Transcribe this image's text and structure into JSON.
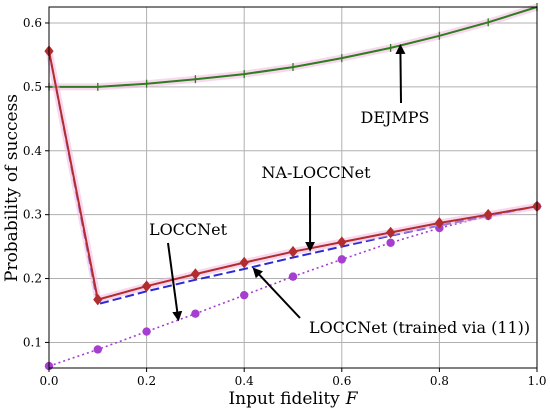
{
  "chart_data": {
    "type": "line",
    "xlabel": "Input fidelity",
    "xlabel_var": "F",
    "ylabel": "Probability of success",
    "xlim": [
      0.0,
      1.0
    ],
    "ylim": [
      0.06,
      0.625
    ],
    "grid": true,
    "xticks": [
      "0.0",
      "0.2",
      "0.4",
      "0.6",
      "0.8",
      "1.0"
    ],
    "yticks": [
      "0.1",
      "0.2",
      "0.3",
      "0.4",
      "0.5",
      "0.6"
    ],
    "series": [
      {
        "name": "DEJMPS",
        "style": "solid",
        "color": "#2e7d1f",
        "marker": "tick",
        "x": [
          0.0,
          0.1,
          0.2,
          0.3,
          0.4,
          0.5,
          0.6,
          0.7,
          0.8,
          0.9,
          1.0
        ],
        "y": [
          0.5,
          0.5,
          0.505,
          0.512,
          0.52,
          0.531,
          0.545,
          0.561,
          0.58,
          0.601,
          0.625
        ]
      },
      {
        "name": "NA-LOCCNet",
        "style": "solid",
        "color": "#b22d2d",
        "marker": "diamond",
        "x": [
          0.0,
          0.1,
          0.2,
          0.3,
          0.4,
          0.5,
          0.6,
          0.7,
          0.8,
          0.9,
          1.0
        ],
        "y": [
          0.556,
          0.167,
          0.188,
          0.207,
          0.225,
          0.242,
          0.257,
          0.272,
          0.287,
          0.3,
          0.313
        ]
      },
      {
        "name": "LOCCNet",
        "style": "dashed",
        "color": "#2b2bd6",
        "marker": "none",
        "x": [
          0.0,
          0.1,
          0.2,
          0.3,
          0.4,
          0.5,
          0.6,
          0.7,
          0.8,
          0.9,
          1.0
        ],
        "y": [
          0.556,
          0.16,
          0.18,
          0.198,
          0.215,
          0.233,
          0.25,
          0.267,
          0.283,
          0.298,
          0.313
        ]
      },
      {
        "name": "LOCCNet (trained via (11))",
        "style": "dotted",
        "color": "#a63fd0",
        "marker": "circle",
        "x": [
          0.0,
          0.1,
          0.2,
          0.3,
          0.4,
          0.5,
          0.6,
          0.7,
          0.8,
          0.9,
          1.0
        ],
        "y": [
          0.063,
          0.089,
          0.117,
          0.145,
          0.174,
          0.203,
          0.23,
          0.256,
          0.279,
          0.298,
          0.313
        ]
      }
    ],
    "annotations": [
      {
        "text": "DEJMPS",
        "points_to": [
          0.72,
          0.564
        ]
      },
      {
        "text": "NA-LOCCNet",
        "points_to": [
          0.535,
          0.245
        ]
      },
      {
        "text": "LOCCNet",
        "points_to": [
          0.265,
          0.136
        ]
      },
      {
        "text": "LOCCNet (trained via (11))",
        "points_to": [
          0.42,
          0.215
        ]
      }
    ]
  }
}
